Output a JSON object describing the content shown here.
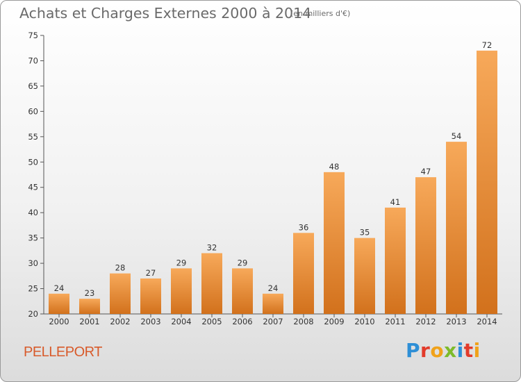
{
  "header": {
    "title": "Achats et Charges Externes 2000 à 2014",
    "subtitle": "(en milliers d'€)"
  },
  "footer": {
    "place": "PELLEPORT",
    "logo_letters": [
      {
        "ch": "P",
        "color": "#2e8fd6"
      },
      {
        "ch": "r",
        "color": "#e23b2b"
      },
      {
        "ch": "o",
        "color": "#f0a21a"
      },
      {
        "ch": "x",
        "color": "#7dbb2a"
      },
      {
        "ch": "i",
        "color": "#2e8fd6"
      },
      {
        "ch": "t",
        "color": "#e23b2b"
      },
      {
        "ch": "i",
        "color": "#f0a21a"
      }
    ]
  },
  "chart_data": {
    "type": "bar",
    "title": "Achats et Charges Externes 2000 à 2014",
    "subtitle": "(en milliers d'€)",
    "xlabel": "",
    "ylabel": "",
    "categories": [
      "2000",
      "2001",
      "2002",
      "2003",
      "2004",
      "2005",
      "2006",
      "2007",
      "2008",
      "2009",
      "2010",
      "2011",
      "2012",
      "2013",
      "2014"
    ],
    "values": [
      24,
      23,
      28,
      27,
      29,
      32,
      29,
      24,
      36,
      48,
      35,
      41,
      47,
      54,
      72
    ],
    "ylim": [
      20,
      75
    ],
    "yticks": [
      20,
      25,
      30,
      35,
      40,
      45,
      50,
      55,
      60,
      65,
      70,
      75
    ],
    "grid": false,
    "legend": "none",
    "colors": {
      "bar_light": "#f7a95a",
      "bar_dark": "#d2711c",
      "axis": "#555555"
    }
  }
}
